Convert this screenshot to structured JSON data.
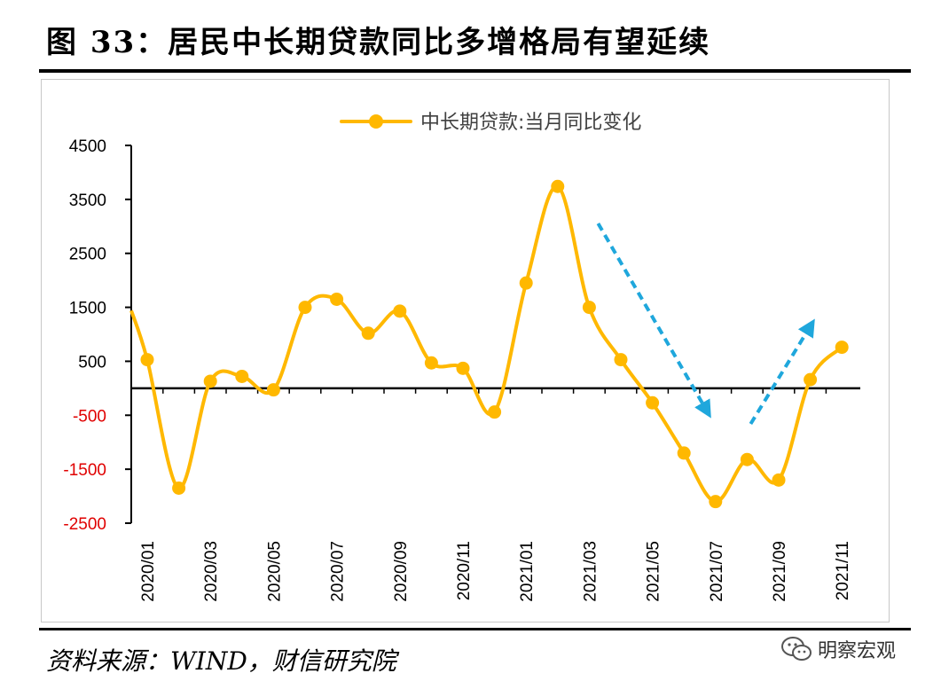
{
  "header": {
    "title": "图 33：居民中长期贷款同比多增格局有望延续"
  },
  "footer": {
    "source": "资料来源：WIND，财信研究院",
    "watermark_text": "明察宏观",
    "watermark_icon": "wechat-icon"
  },
  "colors": {
    "series": "#FFB800",
    "arrow": "#1FA7DC",
    "axis": "#000000",
    "negative_label": "#E00000",
    "positive_label": "#000000"
  },
  "chart_data": {
    "type": "line",
    "title": "",
    "xlabel": "",
    "ylabel": "",
    "ylim": [
      -2500,
      4500
    ],
    "yticks": [
      4500,
      3500,
      2500,
      1500,
      500,
      -500,
      -1500,
      -2500
    ],
    "x": [
      "2020/01",
      "2020/02",
      "2020/03",
      "2020/04",
      "2020/05",
      "2020/06",
      "2020/07",
      "2020/08",
      "2020/09",
      "2020/10",
      "2020/11",
      "2020/12",
      "2021/01",
      "2021/02",
      "2021/03",
      "2021/04",
      "2021/05",
      "2021/06",
      "2021/07",
      "2021/08",
      "2021/09",
      "2021/10",
      "2021/11"
    ],
    "xtick_labels": [
      "2020/01",
      "2020/03",
      "2020/05",
      "2020/07",
      "2020/09",
      "2020/11",
      "2021/01",
      "2021/03",
      "2021/05",
      "2021/07",
      "2021/09",
      "2021/11"
    ],
    "series": [
      {
        "name": "中长期贷款:当月同比变化",
        "values": [
          530,
          -1850,
          130,
          220,
          -30,
          1500,
          1650,
          1020,
          1430,
          470,
          370,
          -440,
          1950,
          3740,
          1500,
          530,
          -270,
          -1200,
          -2100,
          -1320,
          -1700,
          160,
          760
        ],
        "start_value": 1440
      }
    ],
    "legend": {
      "position": "top-center"
    },
    "grid": false,
    "annotations": [
      {
        "type": "arrow",
        "direction": "down",
        "from": "2021/03",
        "to": "2021/07"
      },
      {
        "type": "arrow",
        "direction": "up",
        "from": "2021/08",
        "to": "2021/10"
      }
    ]
  }
}
